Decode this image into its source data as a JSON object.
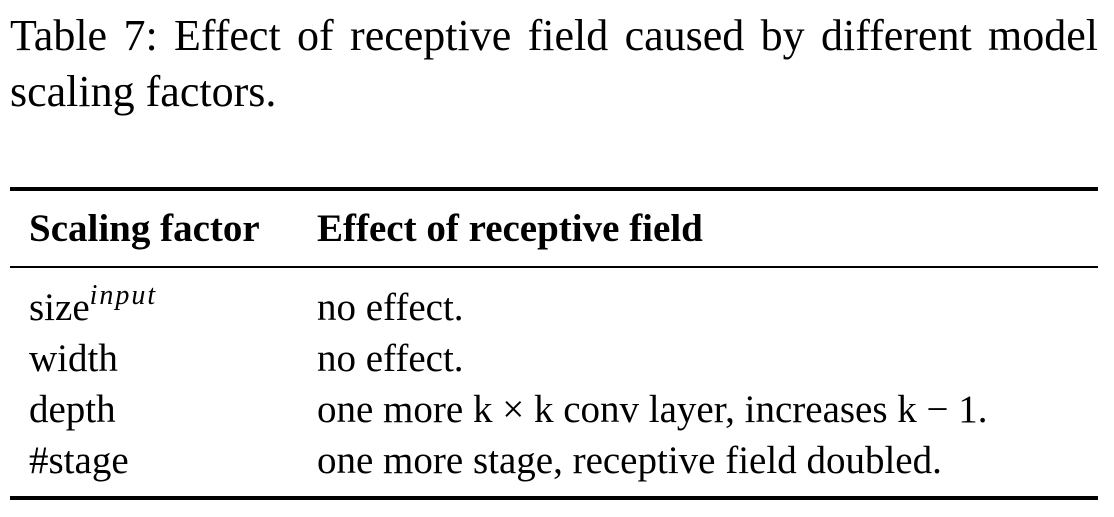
{
  "caption": "Table 7: Effect of receptive field caused by different model scaling factors.",
  "table": {
    "headers": [
      "Scaling factor",
      "Effect of receptive field"
    ],
    "rows": [
      {
        "factor": "size",
        "factor_sup": "input",
        "effect": "no effect."
      },
      {
        "factor": "width",
        "factor_sup": "",
        "effect": "no effect."
      },
      {
        "factor": "depth",
        "factor_sup": "",
        "effect": "one more k × k conv layer, increases k − 1."
      },
      {
        "factor": "#stage",
        "factor_sup": "",
        "effect": "one more stage, receptive field doubled."
      }
    ]
  }
}
